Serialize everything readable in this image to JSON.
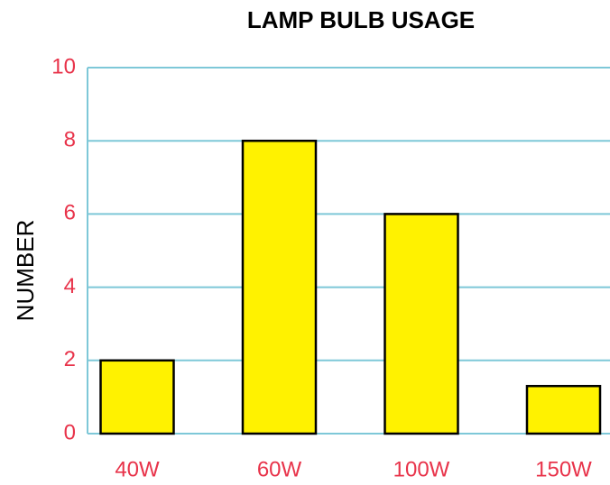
{
  "chart_data": {
    "type": "bar",
    "title": "LAMP BULB USAGE",
    "y_label": "NUMBER",
    "categories": [
      "40W",
      "60W",
      "100W",
      "150W"
    ],
    "values": [
      2,
      8,
      6,
      1.3
    ],
    "color": "#fff200",
    "ylim": [
      0,
      10
    ],
    "yticks": [
      0,
      2,
      4,
      6,
      8,
      10
    ],
    "grid": true
  }
}
